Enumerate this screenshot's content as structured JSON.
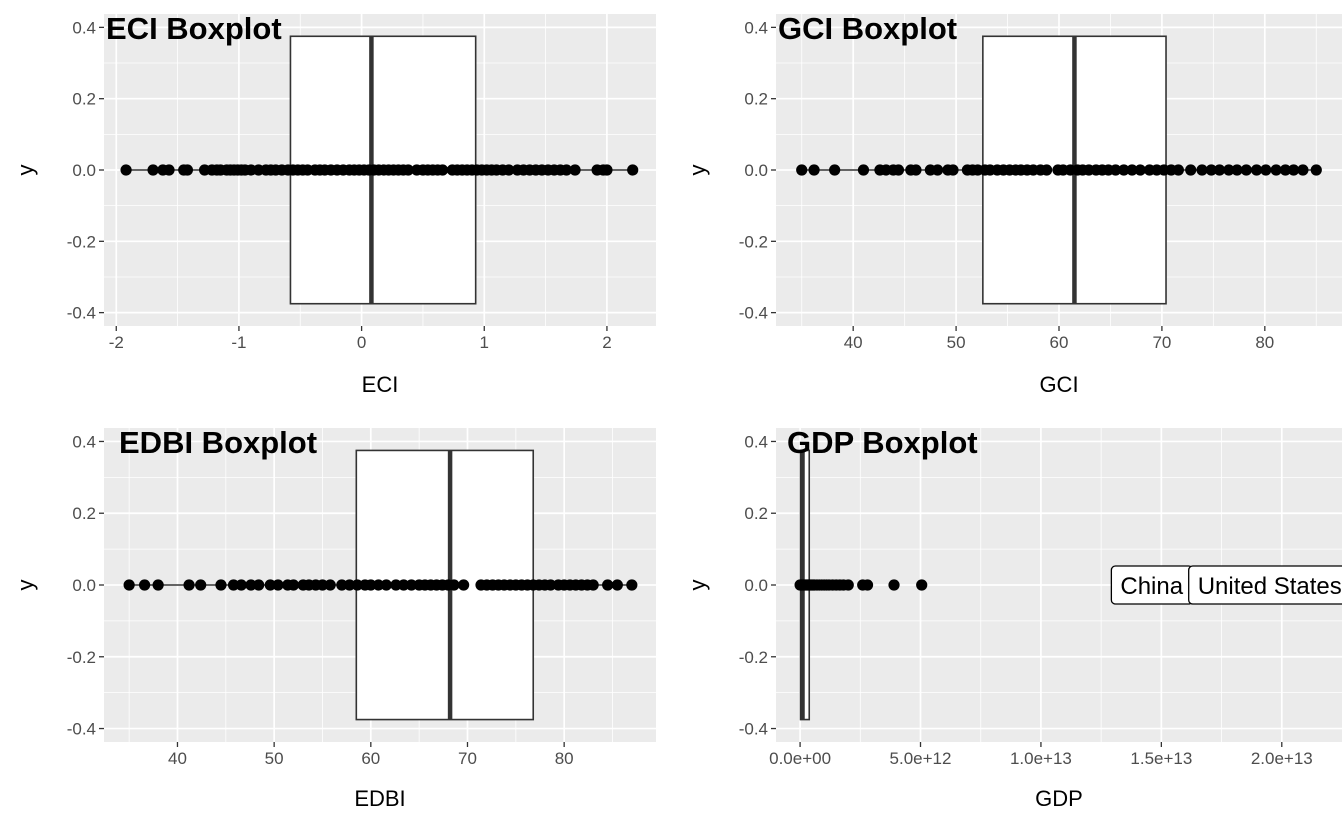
{
  "chart_data": [
    {
      "type": "boxplot",
      "title": "ECI Boxplot",
      "xlabel": "ECI",
      "ylabel": "y",
      "xlim": [
        -2.1,
        2.4
      ],
      "ylim": [
        -0.4,
        0.4
      ],
      "xticks": [
        -2,
        -1,
        0,
        1,
        2
      ],
      "xtick_labels": [
        "-2",
        "-1",
        "0",
        "1",
        "2"
      ],
      "yticks": [
        -0.4,
        -0.2,
        0.0,
        0.2,
        0.4
      ],
      "ytick_labels": [
        "-0.4",
        "-0.2",
        "0.0",
        "0.2",
        "0.4"
      ],
      "box": {
        "whisker_low": -1.92,
        "q1": -0.58,
        "median": 0.08,
        "q3": 0.93,
        "whisker_high": 2.21,
        "y_low": -0.375,
        "y_high": 0.375
      },
      "points": [
        -1.92,
        -1.7,
        -1.62,
        -1.57,
        -1.45,
        -1.42,
        -1.28,
        -1.22,
        -1.18,
        -1.15,
        -1.1,
        -1.07,
        -1.04,
        -1.01,
        -0.98,
        -0.95,
        -0.9,
        -0.84,
        -0.78,
        -0.74,
        -0.7,
        -0.65,
        -0.6,
        -0.56,
        -0.52,
        -0.48,
        -0.44,
        -0.38,
        -0.34,
        -0.3,
        -0.25,
        -0.2,
        -0.15,
        -0.1,
        -0.06,
        -0.02,
        0.02,
        0.06,
        0.1,
        0.14,
        0.18,
        0.22,
        0.26,
        0.3,
        0.34,
        0.38,
        0.45,
        0.5,
        0.54,
        0.58,
        0.62,
        0.66,
        0.74,
        0.78,
        0.82,
        0.86,
        0.9,
        0.94,
        0.98,
        1.02,
        1.06,
        1.1,
        1.15,
        1.2,
        1.27,
        1.32,
        1.37,
        1.42,
        1.47,
        1.52,
        1.57,
        1.62,
        1.67,
        1.74,
        1.92,
        1.97,
        2.0,
        2.21
      ]
    },
    {
      "type": "boxplot",
      "title": "GCI Boxplot",
      "xlabel": "GCI",
      "ylabel": "y",
      "xlim": [
        32.5,
        87.5
      ],
      "ylim": [
        -0.4,
        0.4
      ],
      "xticks": [
        40,
        50,
        60,
        70,
        80
      ],
      "xtick_labels": [
        "40",
        "50",
        "60",
        "70",
        "80"
      ],
      "yticks": [
        -0.4,
        -0.2,
        0.0,
        0.2,
        0.4
      ],
      "ytick_labels": [
        "-0.4",
        "-0.2",
        "0.0",
        "0.2",
        "0.4"
      ],
      "box": {
        "whisker_low": 35,
        "q1": 52.6,
        "median": 61.5,
        "q3": 70.4,
        "whisker_high": 85,
        "y_low": -0.375,
        "y_high": 0.375
      },
      "points": [
        35,
        36.2,
        38.2,
        41,
        42.6,
        43.2,
        43.9,
        44.4,
        45.6,
        46.1,
        47.5,
        48.2,
        49.2,
        49.7,
        51.1,
        51.6,
        52.1,
        52.8,
        53.3,
        54,
        54.6,
        55.2,
        55.8,
        56.3,
        56.9,
        57.5,
        58.2,
        58.8,
        59.9,
        60.4,
        61.1,
        61.8,
        62.3,
        62.9,
        63.6,
        64.2,
        64.8,
        65.5,
        66.3,
        67.1,
        67.9,
        68.8,
        69.5,
        70.2,
        70.9,
        71.6,
        72.8,
        73.9,
        74.8,
        75.6,
        76.5,
        77.3,
        78.2,
        79.2,
        80.1,
        81.1,
        82,
        82.8,
        83.7,
        85
      ]
    },
    {
      "type": "boxplot",
      "title": "EDBI Boxplot",
      "xlabel": "EDBI",
      "ylabel": "y",
      "xlim": [
        32.4,
        89.5
      ],
      "ylim": [
        -0.4,
        0.4
      ],
      "xticks": [
        40,
        50,
        60,
        70,
        80
      ],
      "xtick_labels": [
        "40",
        "50",
        "60",
        "70",
        "80"
      ],
      "yticks": [
        -0.4,
        -0.2,
        0.0,
        0.2,
        0.4
      ],
      "ytick_labels": [
        "-0.4",
        "-0.2",
        "0.0",
        "0.2",
        "0.4"
      ],
      "box": {
        "whisker_low": 35,
        "q1": 58.5,
        "median": 68.2,
        "q3": 76.8,
        "whisker_high": 87,
        "y_low": -0.375,
        "y_high": 0.375
      },
      "points": [
        35,
        36.6,
        38,
        41.2,
        42.4,
        44.5,
        45.8,
        46.6,
        47.6,
        48.4,
        49.6,
        50.4,
        51.4,
        52,
        53,
        53.6,
        54.3,
        55,
        55.8,
        57,
        57.8,
        58.6,
        59.4,
        60,
        60.8,
        61.6,
        62.6,
        63.4,
        64.2,
        65,
        65.6,
        66.2,
        66.8,
        67.4,
        68,
        68.6,
        69.6,
        71.4,
        72,
        72.6,
        73.2,
        73.8,
        74.4,
        75,
        75.6,
        76.2,
        76.8,
        77.4,
        78,
        78.6,
        79.4,
        80,
        80.6,
        81.2,
        81.8,
        82.4,
        83,
        84.5,
        85.5,
        87
      ]
    },
    {
      "type": "boxplot",
      "title": "GDP Boxplot",
      "xlabel": "GDP",
      "ylabel": "y",
      "xlim": [
        -1000000000000.0,
        22500000000000.0
      ],
      "ylim": [
        -0.4,
        0.4
      ],
      "xticks": [
        0,
        5000000000000.0,
        10000000000000.0,
        15000000000000.0,
        20000000000000.0
      ],
      "xtick_labels": [
        "0.0e+00",
        "5.0e+12",
        "1.0e+13",
        "1.5e+13",
        "2.0e+13"
      ],
      "yticks": [
        -0.4,
        -0.2,
        0.0,
        0.2,
        0.4
      ],
      "ytick_labels": [
        "-0.4",
        "-0.2",
        "0.0",
        "0.2",
        "0.4"
      ],
      "box": {
        "whisker_low": 0,
        "q1": 20000000000.0,
        "median": 100000000000.0,
        "q3": 380000000000.0,
        "whisker_high": 800000000000.0,
        "y_low": -0.375,
        "y_high": 0.375
      },
      "points": [
        1000000000.0,
        50000000000.0,
        100000000000.0,
        150000000000.0,
        200000000000.0,
        250000000000.0,
        300000000000.0,
        350000000000.0,
        400000000000.0,
        450000000000.0,
        500000000000.0,
        550000000000.0,
        600000000000.0,
        700000000000.0,
        800000000000.0,
        900000000000.0,
        1000000000000.0,
        1100000000000.0,
        1200000000000.0,
        1350000000000.0,
        1500000000000.0,
        1650000000000.0,
        1800000000000.0,
        2000000000000.0,
        2600000000000.0,
        2800000000000.0,
        3900000000000.0,
        5050000000000.0
      ],
      "annotations": [
        {
          "label": "China",
          "x": 14600000000000.0,
          "y": 0.0
        },
        {
          "label": "United States",
          "x": 19500000000000.0,
          "y": 0.0
        }
      ]
    }
  ]
}
